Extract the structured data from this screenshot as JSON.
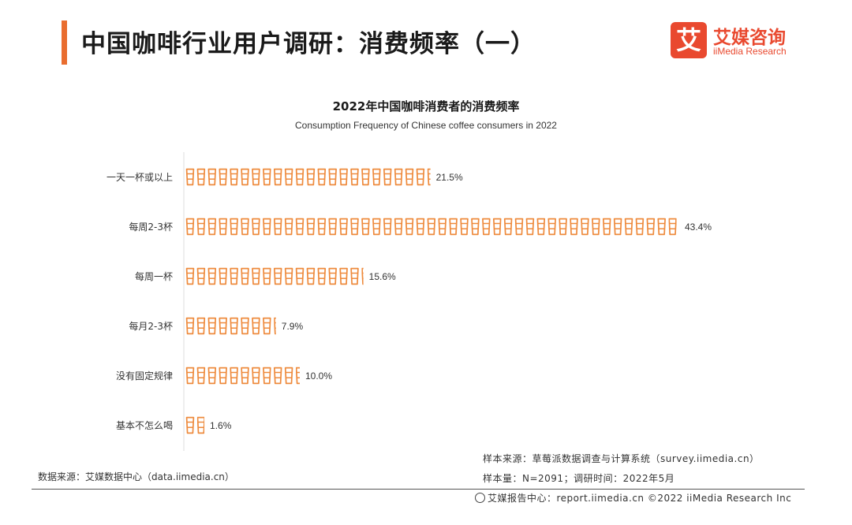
{
  "header": {
    "title": "中国咖啡行业用户调研：消费频率（一）",
    "logo_mark": "艾",
    "logo_cn": "艾媒咨询",
    "logo_en": "iiMedia Research"
  },
  "colors": {
    "accent": "#e96d2f",
    "icon_stroke": "#ee8a3c",
    "logo": "#e9492f"
  },
  "icon": "coffee-cup-icon",
  "chart_data": {
    "type": "bar",
    "orientation": "horizontal",
    "title": "2022年中国咖啡消费者的消费频率",
    "subtitle": "Consumption Frequency of Chinese coffee consumers in 2022",
    "categories": [
      "一天一杯或以上",
      "每周2-3杯",
      "每周一杯",
      "每月2-3杯",
      "没有固定规律",
      "基本不怎么喝"
    ],
    "values": [
      21.5,
      43.4,
      15.6,
      7.9,
      10.0,
      1.6
    ],
    "value_labels": [
      "21.5%",
      "43.4%",
      "15.6%",
      "7.9%",
      "10.0%",
      "1.6%"
    ],
    "unit": "%",
    "grid": false,
    "legend": "none"
  },
  "sources": {
    "data_source": "数据来源：艾媒数据中心（data.iimedia.cn）",
    "sample_source": "样本来源：草莓派数据调查与计算系统（survey.iimedia.cn）",
    "sample_size": "样本量：N=2091；调研时间：2022年5月",
    "footer": "艾媒报告中心：report.iimedia.cn ©2022 iiMedia Research Inc"
  }
}
